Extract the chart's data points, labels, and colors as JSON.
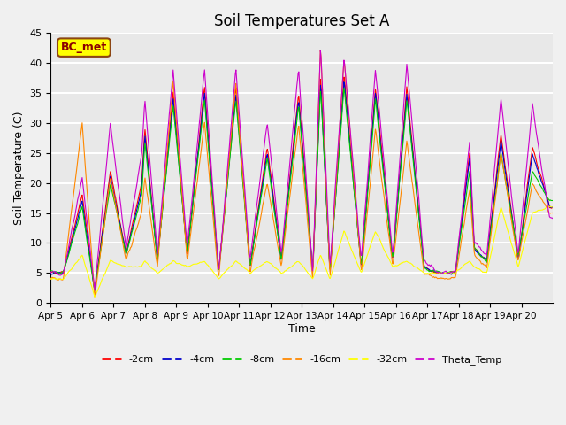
{
  "title": "Soil Temperatures Set A",
  "xlabel": "Time",
  "ylabel": "Soil Temperature (C)",
  "ylim": [
    0,
    45
  ],
  "series_colors": {
    "-2cm": "#ff0000",
    "-4cm": "#0000cc",
    "-8cm": "#00cc00",
    "-16cm": "#ff8800",
    "-32cm": "#ffff00",
    "Theta_Temp": "#cc00cc"
  },
  "legend_colors": [
    "#ff0000",
    "#0000cc",
    "#00cc00",
    "#ff8800",
    "#ffff00",
    "#cc00cc"
  ],
  "legend_labels": [
    "-2cm",
    "-4cm",
    "-8cm",
    "-16cm",
    "-32cm",
    "Theta_Temp"
  ],
  "xtick_labels": [
    "Apr 5",
    "Apr 6",
    "Apr 7",
    "Apr 8",
    "Apr 9",
    "Apr 10",
    "Apr 11",
    "Apr 12",
    "Apr 13",
    "Apr 14",
    "Apr 15",
    "Apr 16",
    "Apr 17",
    "Apr 18",
    "Apr 19",
    "Apr 20"
  ],
  "ytick_values": [
    0,
    5,
    10,
    15,
    20,
    25,
    30,
    35,
    40,
    45
  ],
  "plot_bg_color": "#e8e8e8",
  "grid_color": "#ffffff",
  "annotation_text": "BC_met",
  "annotation_bg": "#ffff00",
  "annotation_border": "#8b4513"
}
